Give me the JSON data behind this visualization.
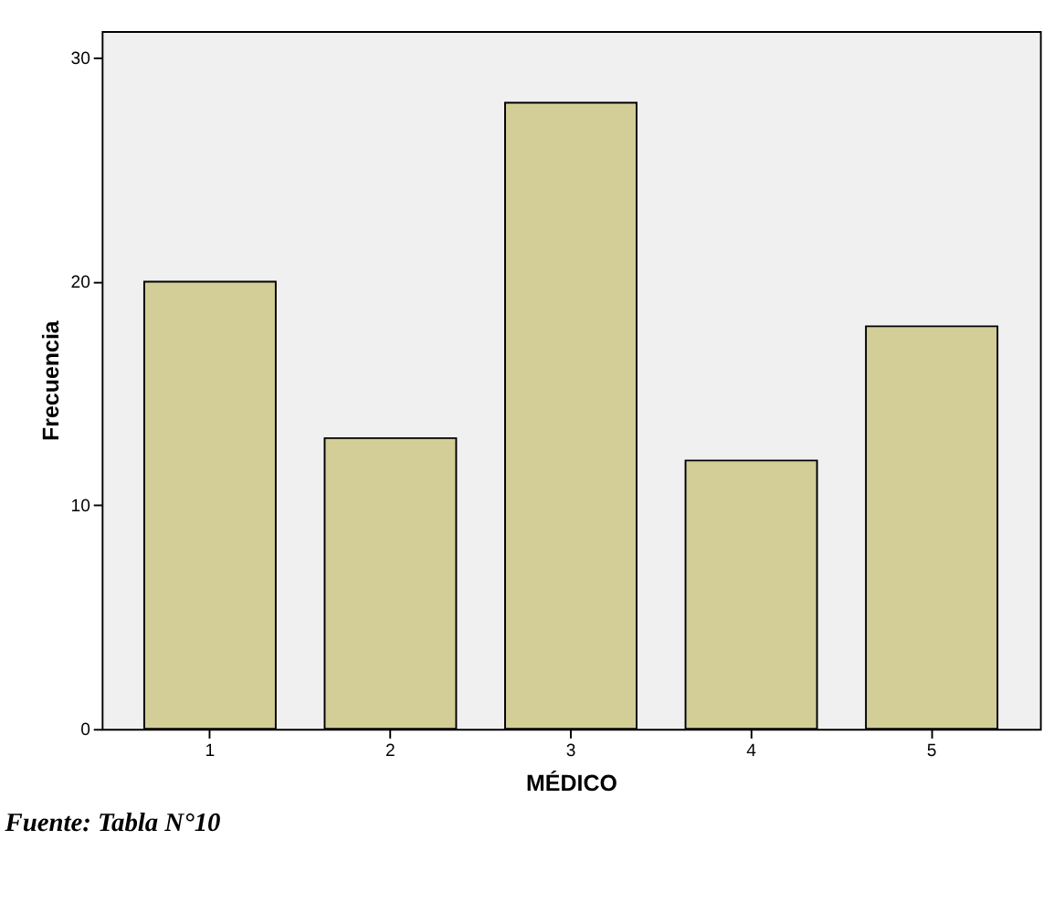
{
  "chart_data": {
    "type": "bar",
    "xlabel": "MÉDICO",
    "ylabel": "Frecuencia",
    "categories": [
      "1",
      "2",
      "3",
      "4",
      "5"
    ],
    "values": [
      20,
      13,
      28,
      12,
      18
    ],
    "color": "#d3ce97",
    "ylim": [
      0,
      31.2
    ],
    "yticks": [
      0,
      10,
      20,
      30
    ],
    "grid": false,
    "annotations": [
      "Fuente: Tabla N°10"
    ]
  }
}
